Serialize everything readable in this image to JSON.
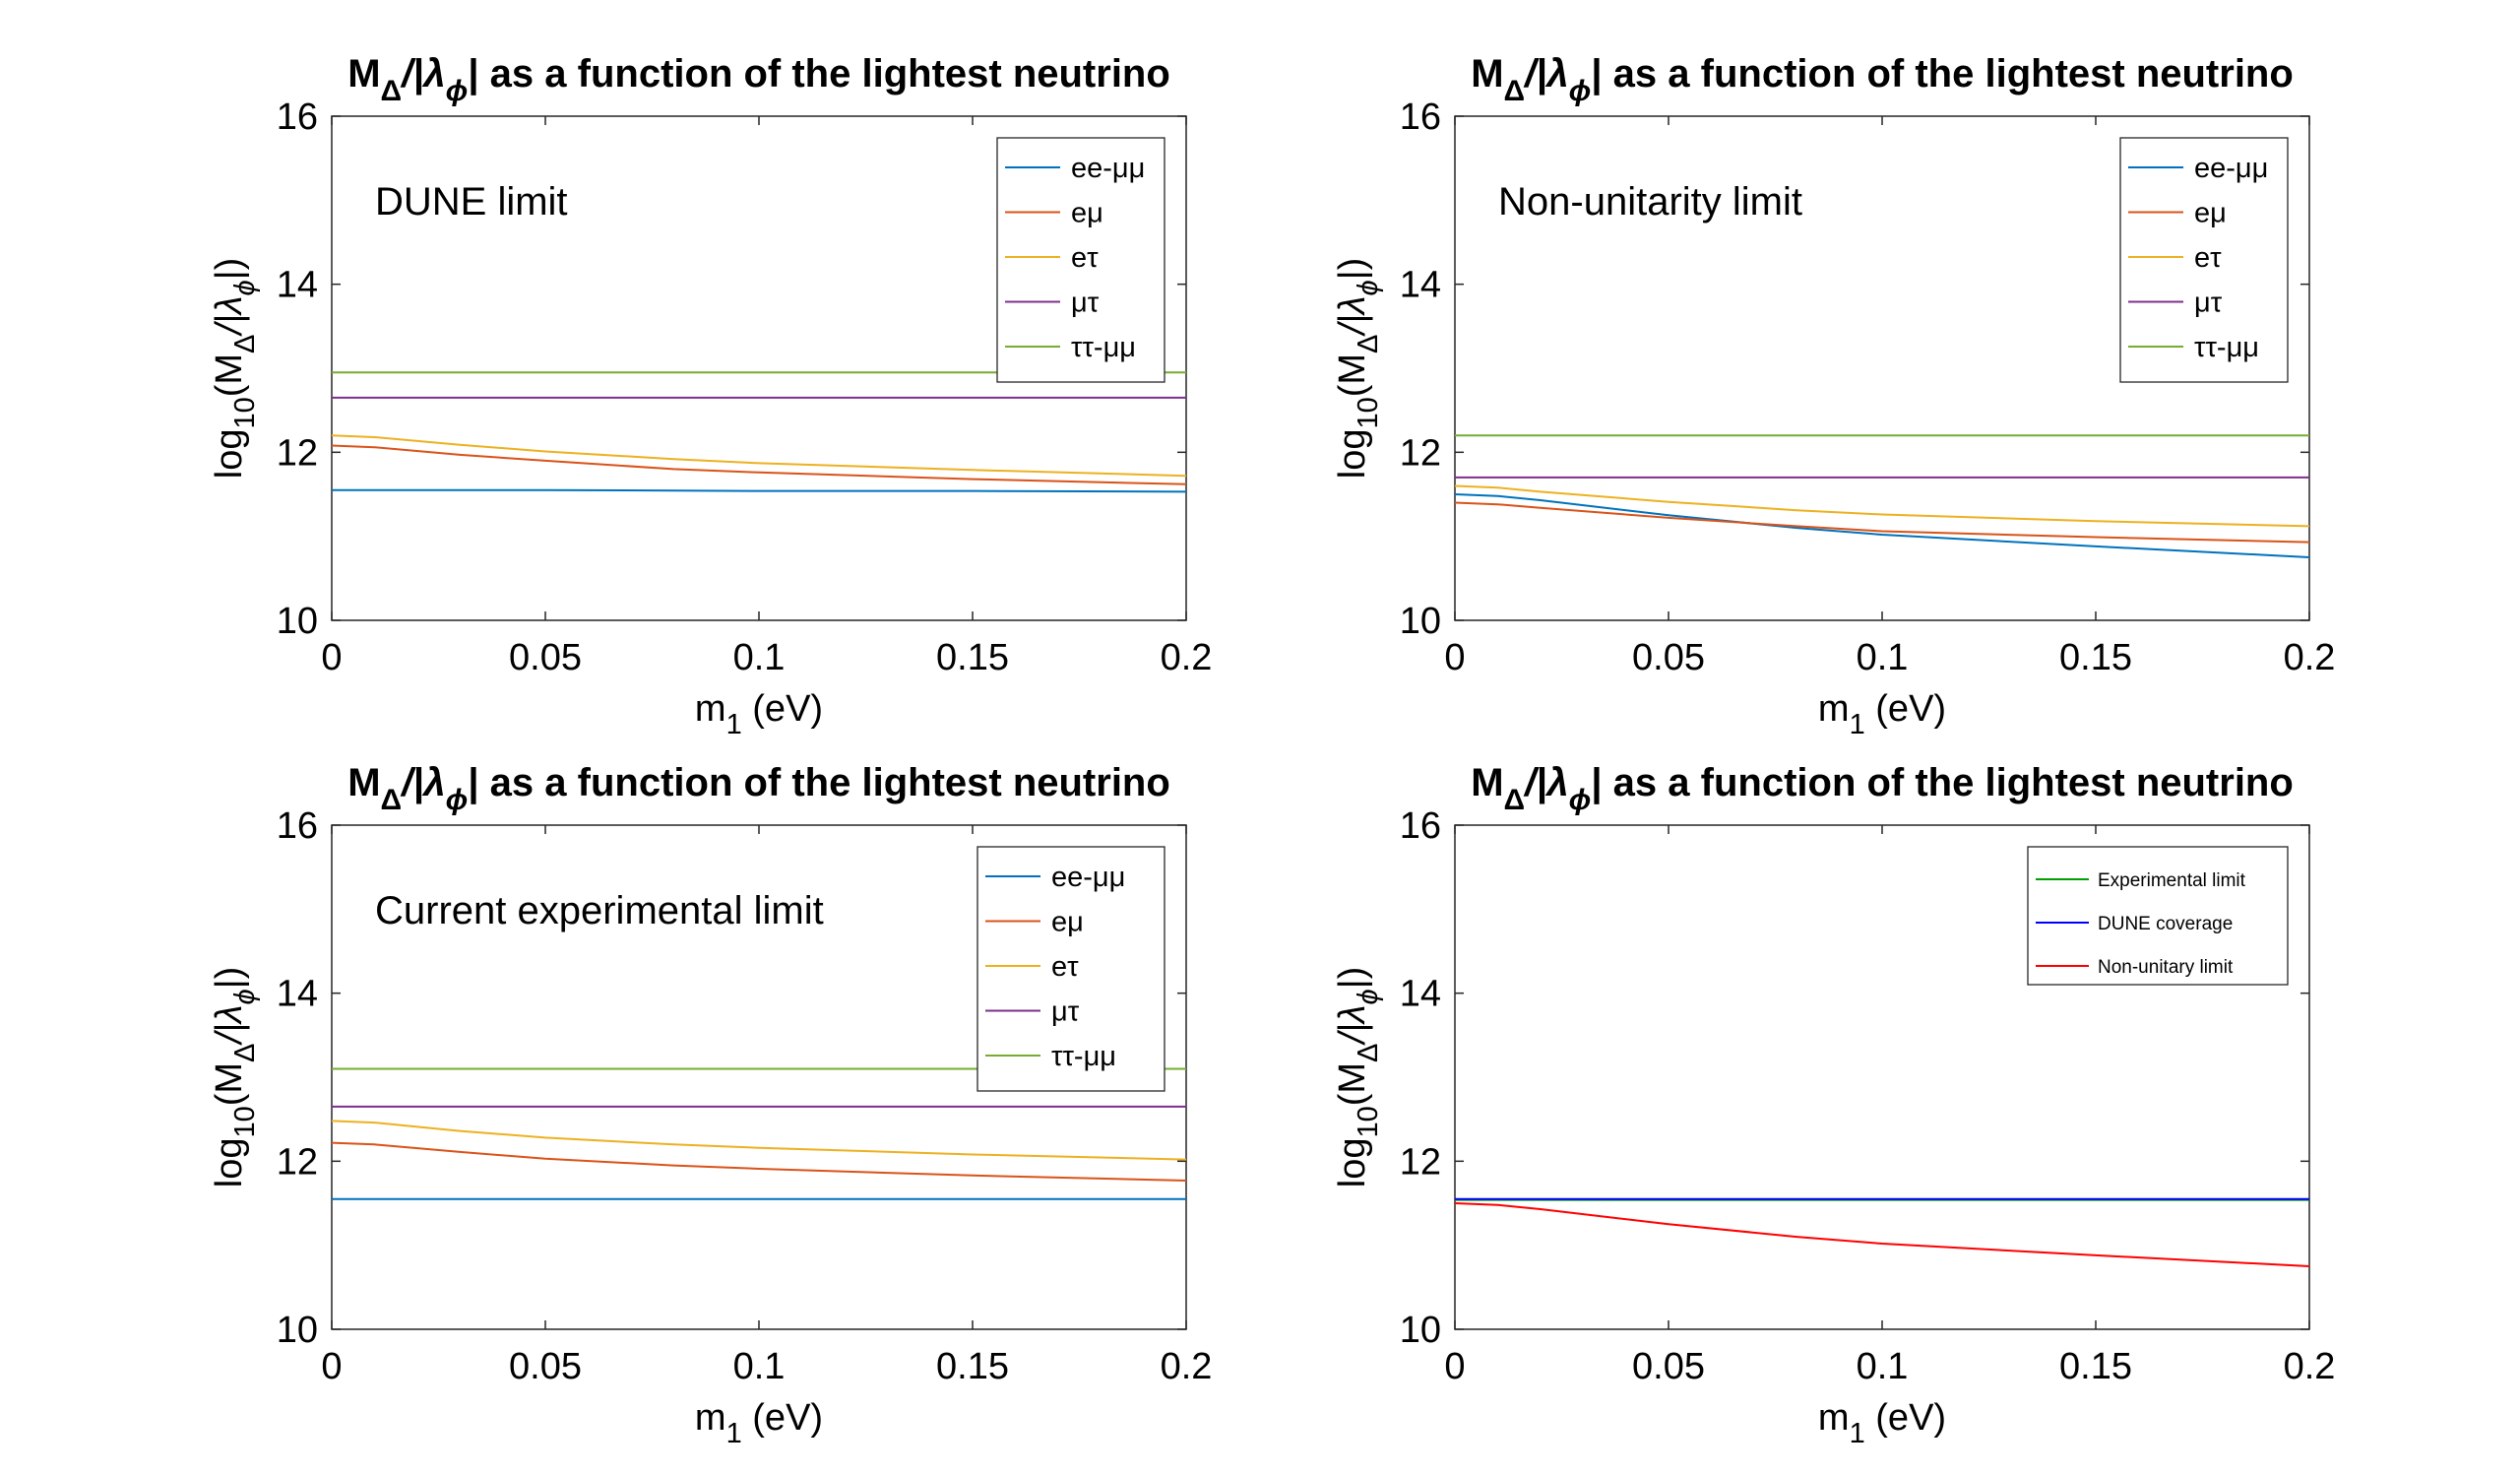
{
  "figure": {
    "title_base": "M",
    "title_sub1": "Δ",
    "title_mid": "/|λ",
    "title_sub2": "ϕ",
    "title_end": "| as a function of the lightest neutrino",
    "xlabel_base": "m",
    "xlabel_sub": "1",
    "xlabel_end": " (eV)",
    "ylabel_a": "log",
    "ylabel_sub1": "10",
    "ylabel_b": "(M",
    "ylabel_sub2": "Δ",
    "ylabel_c": "/|λ",
    "ylabel_sub3": "ϕ",
    "ylabel_d": "|)"
  },
  "colors": {
    "blue": "#0072BD",
    "orange": "#D95319",
    "yellow": "#EDB120",
    "purple": "#7E2F8E",
    "green": "#77AC30",
    "exp_green": "#00A000",
    "dune_blue": "#0000FF",
    "nonunit_red": "#FF0000"
  },
  "chart_data": [
    {
      "type": "line",
      "annotation": "DUNE limit",
      "xlim": [
        0,
        0.2
      ],
      "ylim": [
        10,
        16
      ],
      "xticks": [
        "0",
        "0.05",
        "0.1",
        "0.15",
        "0.2"
      ],
      "yticks": [
        "10",
        "12",
        "14",
        "16"
      ],
      "legend_position": "top-right",
      "series": [
        {
          "name": "ee-μμ",
          "color": "blue",
          "x": [
            0,
            0.05,
            0.1,
            0.15,
            0.2
          ],
          "y": [
            11.55,
            11.55,
            11.54,
            11.54,
            11.53
          ]
        },
        {
          "name": "eμ",
          "color": "orange",
          "x": [
            0,
            0.01,
            0.03,
            0.05,
            0.08,
            0.1,
            0.15,
            0.2
          ],
          "y": [
            12.08,
            12.06,
            11.97,
            11.9,
            11.8,
            11.76,
            11.68,
            11.62
          ]
        },
        {
          "name": "eτ",
          "color": "yellow",
          "x": [
            0,
            0.01,
            0.03,
            0.05,
            0.08,
            0.1,
            0.15,
            0.2
          ],
          "y": [
            12.2,
            12.18,
            12.09,
            12.01,
            11.92,
            11.87,
            11.79,
            11.72
          ]
        },
        {
          "name": "μτ",
          "color": "purple",
          "x": [
            0,
            0.2
          ],
          "y": [
            12.65,
            12.65
          ]
        },
        {
          "name": "ττ-μμ",
          "color": "green",
          "x": [
            0,
            0.2
          ],
          "y": [
            12.95,
            12.95
          ]
        }
      ]
    },
    {
      "type": "line",
      "annotation": "Non-unitarity limit",
      "xlim": [
        0,
        0.2
      ],
      "ylim": [
        10,
        16
      ],
      "xticks": [
        "0",
        "0.05",
        "0.1",
        "0.15",
        "0.2"
      ],
      "yticks": [
        "10",
        "12",
        "14",
        "16"
      ],
      "legend_position": "top-right",
      "series": [
        {
          "name": "ee-μμ",
          "color": "blue",
          "x": [
            0,
            0.01,
            0.02,
            0.05,
            0.08,
            0.1,
            0.15,
            0.2
          ],
          "y": [
            11.5,
            11.48,
            11.43,
            11.25,
            11.1,
            11.02,
            10.88,
            10.75
          ]
        },
        {
          "name": "eμ",
          "color": "orange",
          "x": [
            0,
            0.01,
            0.02,
            0.05,
            0.08,
            0.1,
            0.15,
            0.2
          ],
          "y": [
            11.4,
            11.38,
            11.34,
            11.22,
            11.12,
            11.06,
            10.99,
            10.93
          ]
        },
        {
          "name": "eτ",
          "color": "yellow",
          "x": [
            0,
            0.01,
            0.02,
            0.05,
            0.08,
            0.1,
            0.15,
            0.2
          ],
          "y": [
            11.6,
            11.58,
            11.53,
            11.41,
            11.31,
            11.26,
            11.18,
            11.12
          ]
        },
        {
          "name": "μτ",
          "color": "purple",
          "x": [
            0,
            0.2
          ],
          "y": [
            11.7,
            11.7
          ]
        },
        {
          "name": "ττ-μμ",
          "color": "green",
          "x": [
            0,
            0.2
          ],
          "y": [
            12.2,
            12.2
          ]
        }
      ]
    },
    {
      "type": "line",
      "annotation": "Current experimental limit",
      "xlim": [
        0,
        0.2
      ],
      "ylim": [
        10,
        16
      ],
      "xticks": [
        "0",
        "0.05",
        "0.1",
        "0.15",
        "0.2"
      ],
      "yticks": [
        "10",
        "12",
        "14",
        "16"
      ],
      "legend_position": "top-right",
      "series": [
        {
          "name": "ee-μμ",
          "color": "blue",
          "x": [
            0,
            0.2
          ],
          "y": [
            11.55,
            11.55
          ]
        },
        {
          "name": "eμ",
          "color": "orange",
          "x": [
            0,
            0.01,
            0.03,
            0.05,
            0.08,
            0.1,
            0.15,
            0.2
          ],
          "y": [
            12.22,
            12.2,
            12.11,
            12.03,
            11.95,
            11.91,
            11.83,
            11.77
          ]
        },
        {
          "name": "eτ",
          "color": "yellow",
          "x": [
            0,
            0.01,
            0.03,
            0.05,
            0.08,
            0.1,
            0.15,
            0.2
          ],
          "y": [
            12.48,
            12.46,
            12.36,
            12.28,
            12.2,
            12.16,
            12.08,
            12.02
          ]
        },
        {
          "name": "μτ",
          "color": "purple",
          "x": [
            0,
            0.2
          ],
          "y": [
            12.65,
            12.65
          ]
        },
        {
          "name": "ττ-μμ",
          "color": "green",
          "x": [
            0,
            0.2
          ],
          "y": [
            13.1,
            13.1
          ]
        }
      ]
    },
    {
      "type": "line",
      "annotation": "",
      "xlim": [
        0,
        0.2
      ],
      "ylim": [
        10,
        16
      ],
      "xticks": [
        "0",
        "0.05",
        "0.1",
        "0.15",
        "0.2"
      ],
      "yticks": [
        "10",
        "12",
        "14",
        "16"
      ],
      "legend_position": "top-right",
      "series": [
        {
          "name": "Experimental limit",
          "color": "exp_green",
          "x": [
            0,
            0.2
          ],
          "y": [
            11.54,
            11.54
          ]
        },
        {
          "name": "DUNE coverage",
          "color": "dune_blue",
          "x": [
            0,
            0.2
          ],
          "y": [
            11.55,
            11.55
          ]
        },
        {
          "name": "Non-unitary limit",
          "color": "nonunit_red",
          "x": [
            0,
            0.01,
            0.02,
            0.05,
            0.08,
            0.1,
            0.15,
            0.2
          ],
          "y": [
            11.5,
            11.48,
            11.43,
            11.25,
            11.1,
            11.02,
            10.88,
            10.75
          ]
        }
      ]
    }
  ]
}
